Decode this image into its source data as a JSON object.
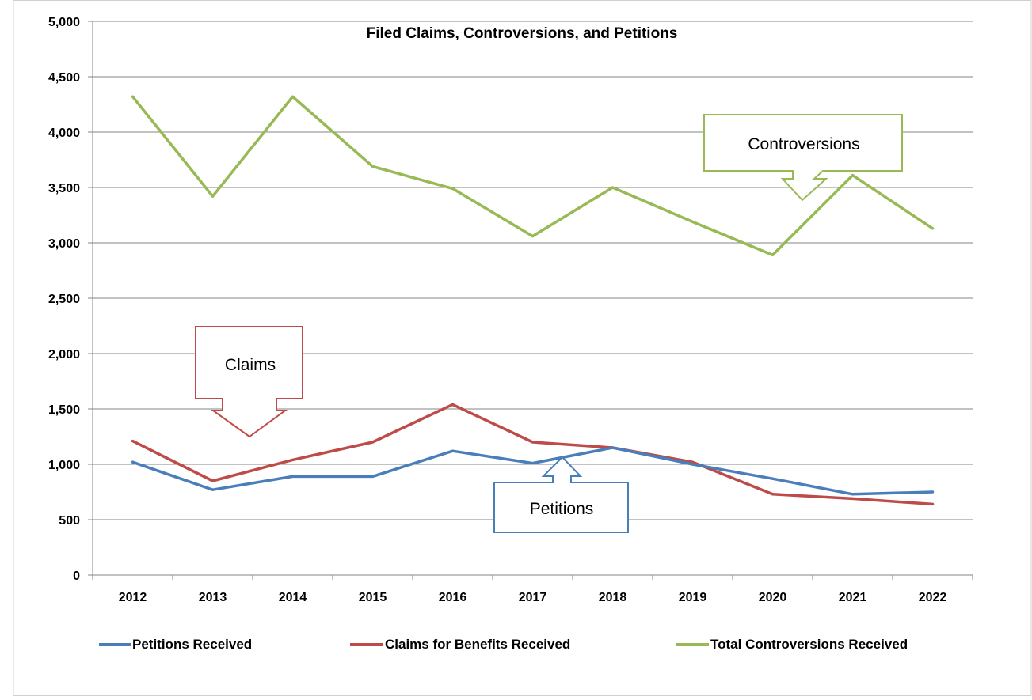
{
  "chart_data": {
    "type": "line",
    "title": "Filed Claims, Controversions, and Petitions",
    "xlabel": "",
    "ylabel": "",
    "ylim": [
      0,
      5000
    ],
    "ytick_labels": [
      "0",
      "500",
      "1,000",
      "1,500",
      "2,000",
      "2,500",
      "3,000",
      "3,500",
      "4,000",
      "4,500",
      "5,000"
    ],
    "categories": [
      "2012",
      "2013",
      "2014",
      "2015",
      "2016",
      "2017",
      "2018",
      "2019",
      "2020",
      "2021",
      "2022"
    ],
    "grid": true,
    "legend_position": "bottom",
    "series": [
      {
        "name": "Petitions Received",
        "color": "#4a7ebb",
        "values": [
          1020,
          770,
          890,
          890,
          1120,
          1010,
          1150,
          1000,
          870,
          730,
          750
        ]
      },
      {
        "name": "Claims for Benefits Received",
        "color": "#be4b48",
        "values": [
          1210,
          850,
          1040,
          1200,
          1540,
          1200,
          1150,
          1020,
          730,
          690,
          640
        ]
      },
      {
        "name": "Total Controversions Received",
        "color": "#98b954",
        "values": [
          4320,
          3420,
          4320,
          3690,
          3490,
          3060,
          3500,
          3190,
          2890,
          3610,
          3130
        ]
      }
    ],
    "annotations": [
      {
        "text": "Controversions",
        "target_series": "Total Controversions Received",
        "color": "#98b954"
      },
      {
        "text": "Claims",
        "target_series": "Claims for Benefits Received",
        "color": "#be4b48"
      },
      {
        "text": "Petitions",
        "target_series": "Petitions Received",
        "color": "#4a7ebb"
      }
    ]
  }
}
